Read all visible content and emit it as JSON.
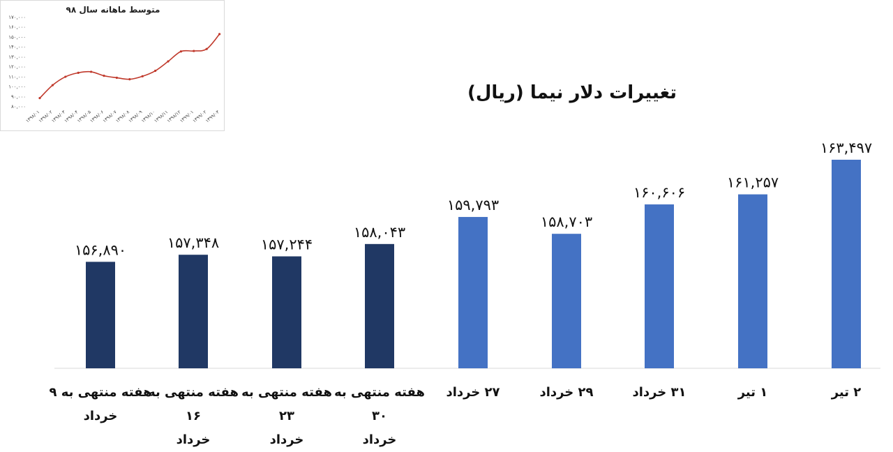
{
  "inset": {
    "title": "متوسط ماهانه سال ۹۸",
    "chart_data": {
      "type": "line",
      "title": "متوسط ماهانه سال ۹۸",
      "ylim": [
        80000,
        170000
      ],
      "yticks": [
        "۸۰,۰۰۰",
        "۹۰,۰۰۰",
        "۱۰۰,۰۰۰",
        "۱۱۰,۰۰۰",
        "۱۲۰,۰۰۰",
        "۱۳۰,۰۰۰",
        "۱۴۰,۰۰۰",
        "۱۵۰,۰۰۰",
        "۱۶۰,۰۰۰",
        "۱۷۰,۰۰۰"
      ],
      "x": [
        "۱۳۹۸/۰۱",
        "۱۳۹۸/۰۲",
        "۱۳۹۸/۰۳",
        "۱۳۹۸/۰۴",
        "۱۳۹۸/۰۵",
        "۱۳۹۸/۰۶",
        "۱۳۹۸/۰۷",
        "۱۳۹۸/۰۸",
        "۱۳۹۸/۰۹",
        "۱۳۹۸/۱۰",
        "۱۳۹۸/۱۱",
        "۱۳۹۸/۱۲",
        "۱۳۹۹/۰۱",
        "۱۳۹۹/۰۲",
        "۱۳۹۹/۰۳"
      ],
      "values": [
        88000,
        101000,
        109500,
        113500,
        114500,
        110500,
        108500,
        107000,
        110000,
        115500,
        125000,
        135000,
        135500,
        137500,
        152500
      ],
      "color": "#c0392b"
    }
  },
  "main": {
    "title": "تغییرات دلار نیما (ریال)",
    "chart_data": {
      "type": "bar",
      "title": "تغییرات دلار نیما (ریال)",
      "categories": [
        [
          "هفته منتهی به ۹",
          "خرداد"
        ],
        [
          "هفته منتهی به ۱۶",
          "خرداد"
        ],
        [
          "هفته منتهی به ۲۳",
          "خرداد"
        ],
        [
          "هفته منتهی به ۳۰",
          "خرداد"
        ],
        [
          "۲۷ خرداد"
        ],
        [
          "۲۹ خرداد"
        ],
        [
          "۳۱ خرداد"
        ],
        [
          "۱ تیر"
        ],
        [
          "۲ تیر"
        ]
      ],
      "values": [
        156890,
        157348,
        157244,
        158043,
        159793,
        158703,
        160606,
        161257,
        163497
      ],
      "labels": [
        "۱۵۶,۸۹۰",
        "۱۵۷,۳۴۸",
        "۱۵۷,۲۴۴",
        "۱۵۸,۰۴۳",
        "۱۵۹,۷۹۳",
        "۱۵۸,۷۰۳",
        "۱۶۰,۶۰۶",
        "۱۶۱,۲۵۷",
        "۱۶۳,۴۹۷"
      ],
      "colors": [
        "#203864",
        "#203864",
        "#203864",
        "#203864",
        "#4472c4",
        "#4472c4",
        "#4472c4",
        "#4472c4",
        "#4472c4"
      ],
      "ylim": [
        150000,
        164000
      ],
      "grid": false
    }
  }
}
